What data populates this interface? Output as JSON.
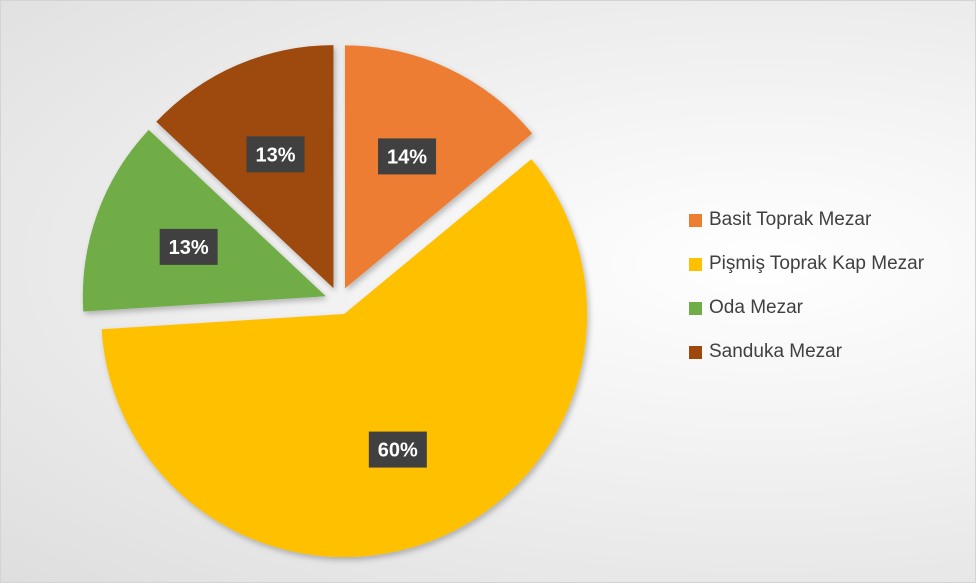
{
  "chart_data": {
    "type": "pie",
    "slices": [
      {
        "name": "Basit Toprak Mezar",
        "value": 14,
        "label": "14%",
        "color": "#ED7D31"
      },
      {
        "name": "Pişmiş Toprak Kap Mezar",
        "value": 60,
        "label": "60%",
        "color": "#FFC000"
      },
      {
        "name": "Oda Mezar",
        "value": 13,
        "label": "13%",
        "color": "#70AD47"
      },
      {
        "name": "Sanduka Mezar",
        "value": 13,
        "label": "13%",
        "color": "#9E480E"
      }
    ],
    "exploded": true,
    "legend_position": "right"
  }
}
